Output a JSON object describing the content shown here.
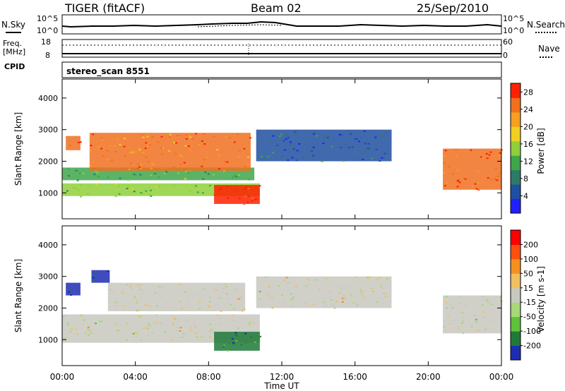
{
  "header": {
    "station": "TIGER (fitACF)",
    "beam": "Beam 02",
    "date": "25/Sep/2010"
  },
  "noise_panel": {
    "left_label": "N.Sky",
    "left_ticks": [
      "10^5",
      "10^0"
    ],
    "right_label": "N.Search",
    "right_ticks": [
      "10^5",
      "10^0"
    ]
  },
  "freq_panel": {
    "left_label_line1": "Freq.",
    "left_label_line2": "[MHz]",
    "left_ticks": [
      "18",
      "8"
    ],
    "right_label": "Nave",
    "right_ticks": [
      "60",
      "0"
    ]
  },
  "cpid_panel": {
    "label": "CPID",
    "program": "stereo_scan 8551"
  },
  "colors": {
    "power_scale": [
      "#2020ff",
      "#1f4fa0",
      "#2e7a68",
      "#3fa64a",
      "#8fd03a",
      "#f0d020",
      "#f5a020",
      "#f07020",
      "#ff2000"
    ],
    "velocity_scale": [
      "#1e2cb4",
      "#1f7a3a",
      "#5fc23a",
      "#a8d878",
      "#c8c8c0",
      "#f0c060",
      "#f59020",
      "#ff5010",
      "#ff0000"
    ]
  },
  "chart_data": [
    {
      "type": "heatmap",
      "name": "power",
      "xlabel": "",
      "ylabel": "Slant Range [km]",
      "xlim": [
        "00:00",
        "24:00"
      ],
      "ylim": [
        180,
        4600
      ],
      "y_ticks": [
        "1000",
        "2000",
        "3000",
        "4000"
      ],
      "colorbar": {
        "label": "Power [dB]",
        "ticks": [
          "4",
          "8",
          "12",
          "16",
          "20",
          "24",
          "28"
        ],
        "range": [
          0,
          30
        ]
      },
      "features": [
        {
          "start_h": 0.0,
          "end_h": 10.8,
          "range_km": [
            900,
            1300
          ],
          "value": 14
        },
        {
          "start_h": 0.0,
          "end_h": 10.5,
          "range_km": [
            1400,
            1800
          ],
          "value": 12
        },
        {
          "start_h": 0.2,
          "end_h": 1.0,
          "range_km": [
            2350,
            2800
          ],
          "value": 24
        },
        {
          "start_h": 1.5,
          "end_h": 10.3,
          "range_km": [
            1700,
            2900
          ],
          "value": 24
        },
        {
          "start_h": 8.3,
          "end_h": 10.8,
          "range_km": [
            650,
            1250
          ],
          "value": 28
        },
        {
          "start_h": 10.6,
          "end_h": 18.0,
          "range_km": [
            2000,
            3000
          ],
          "value": 6
        },
        {
          "start_h": 20.8,
          "end_h": 24.0,
          "range_km": [
            1100,
            2400
          ],
          "value": 26
        }
      ]
    },
    {
      "type": "heatmap",
      "name": "velocity",
      "xlabel": "Time UT",
      "ylabel": "Slant Range [km]",
      "xlim": [
        "00:00",
        "24:00"
      ],
      "ylim": [
        180,
        4600
      ],
      "x_ticks": [
        "00:00",
        "04:00",
        "08:00",
        "12:00",
        "16:00",
        "20:00",
        "00:00"
      ],
      "y_ticks": [
        "1000",
        "2000",
        "3000",
        "4000"
      ],
      "colorbar": {
        "label": "Velocity [m s-1]",
        "ticks": [
          "200",
          "100",
          "50",
          "15",
          "-15",
          "-50",
          "-100",
          "-200"
        ],
        "range": [
          -250,
          250
        ]
      },
      "features": [
        {
          "start_h": 0.0,
          "end_h": 10.8,
          "range_km": [
            900,
            1800
          ],
          "value": 0
        },
        {
          "start_h": 0.2,
          "end_h": 1.0,
          "range_km": [
            2400,
            2800
          ],
          "value": -200
        },
        {
          "start_h": 1.6,
          "end_h": 2.6,
          "range_km": [
            2800,
            3200
          ],
          "value": -200
        },
        {
          "start_h": 2.5,
          "end_h": 10.0,
          "range_km": [
            1900,
            2800
          ],
          "value": 0
        },
        {
          "start_h": 8.3,
          "end_h": 10.8,
          "range_km": [
            650,
            1250
          ],
          "value": -150
        },
        {
          "start_h": 10.6,
          "end_h": 18.0,
          "range_km": [
            2000,
            3000
          ],
          "value": 0
        },
        {
          "start_h": 20.8,
          "end_h": 24.0,
          "range_km": [
            1200,
            2400
          ],
          "value": 0
        }
      ]
    }
  ]
}
